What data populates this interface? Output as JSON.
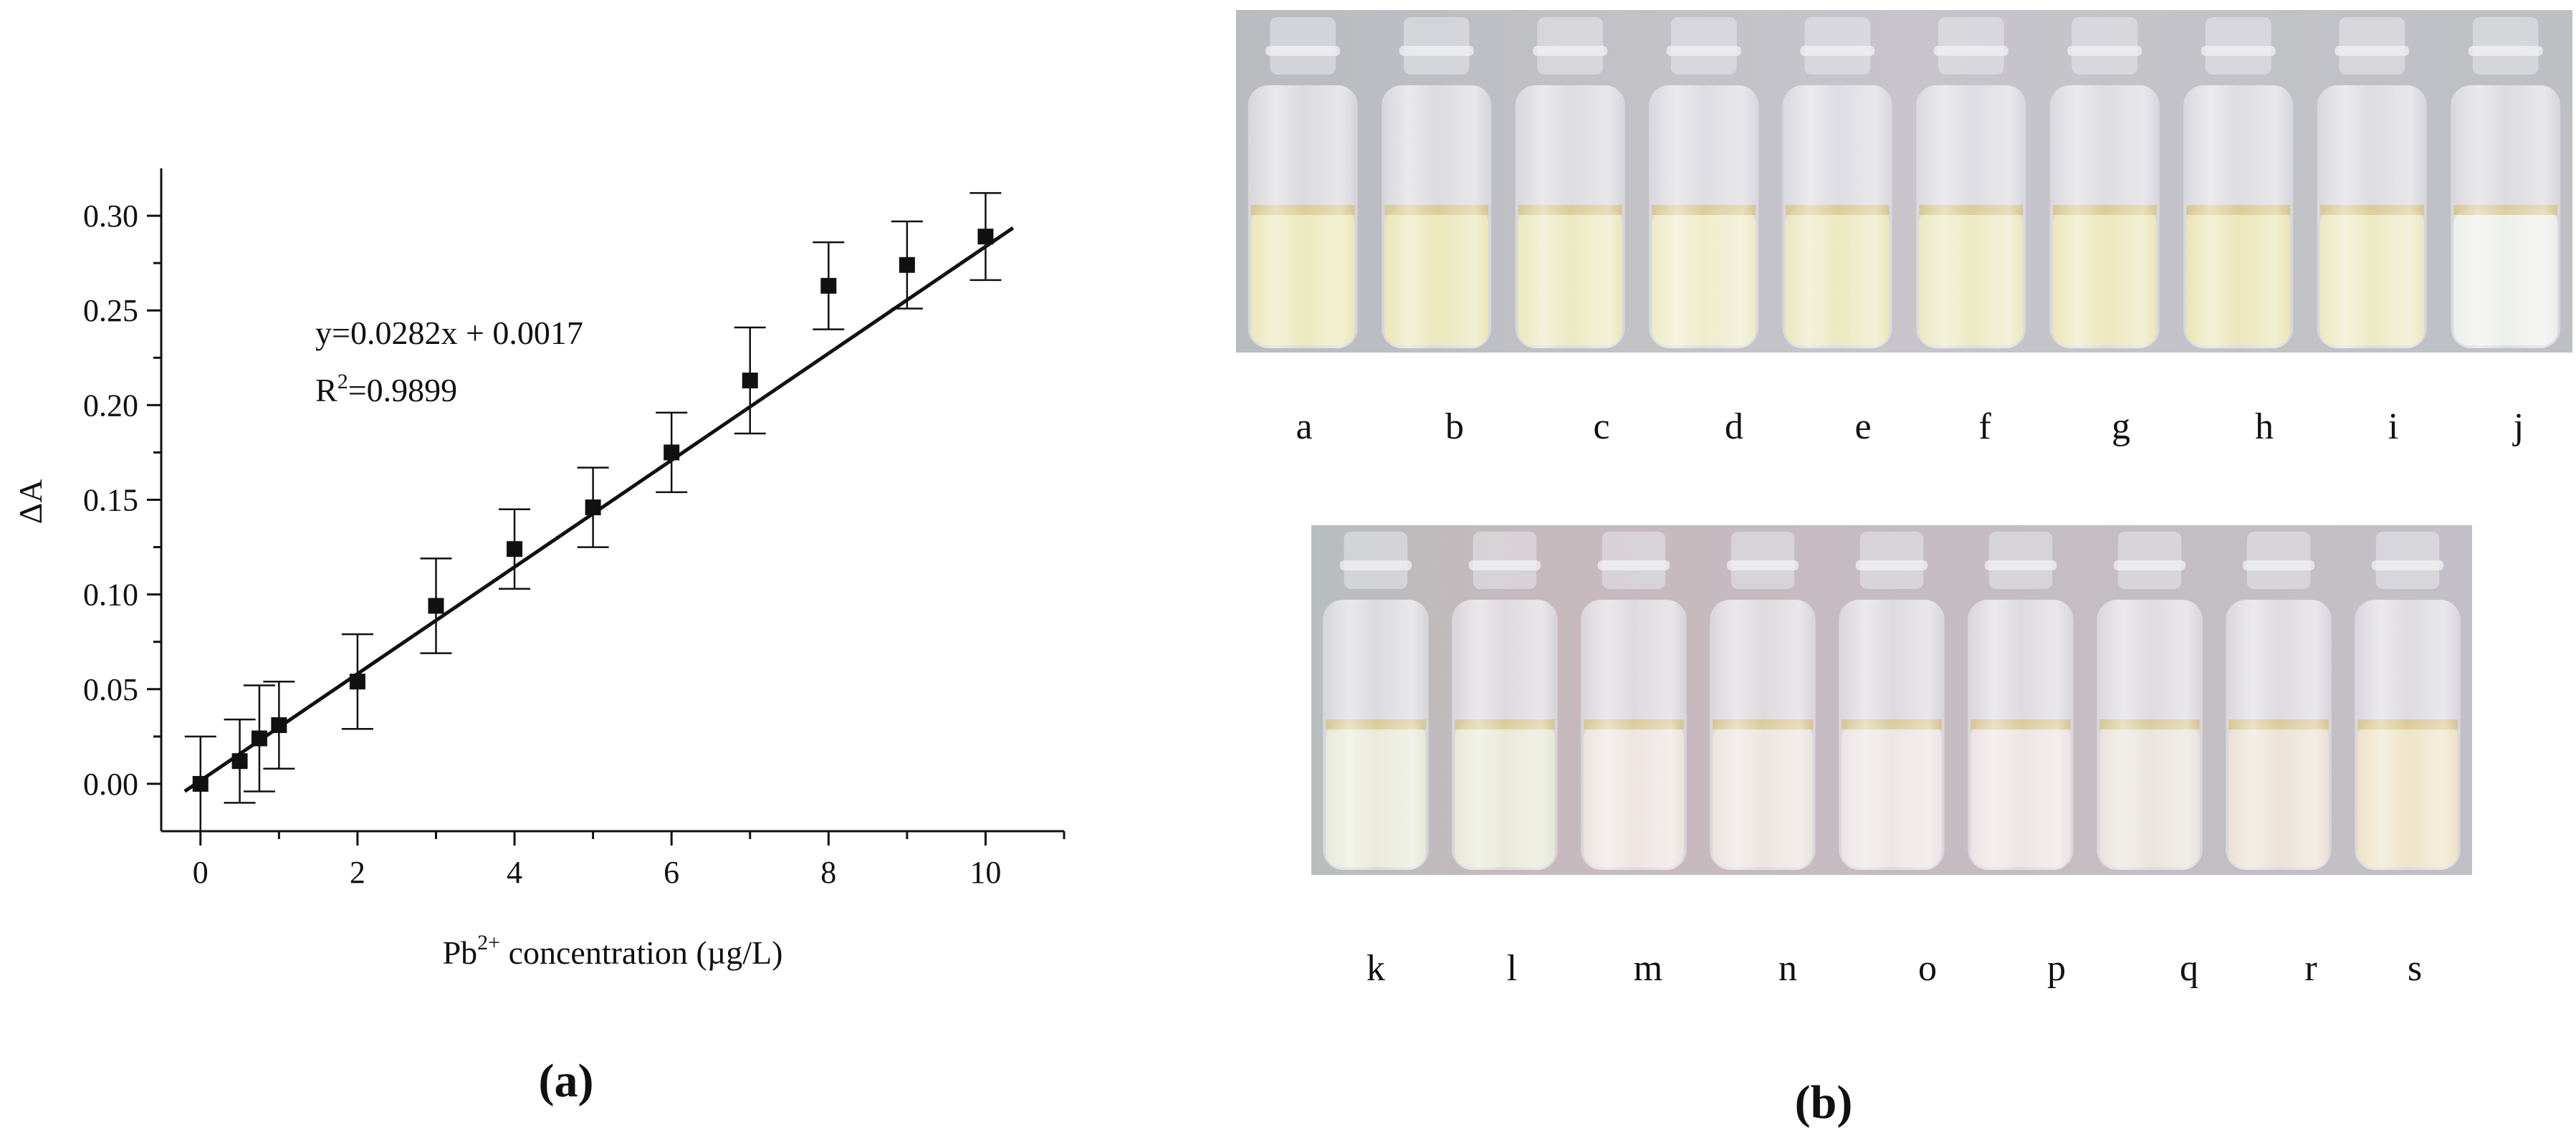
{
  "chart_data": {
    "type": "scatter",
    "xlabel": "Pb2+ concentration (µg/L)",
    "xlabel_parts": {
      "base": "Pb",
      "sup": "2+",
      "rest": " concentration (µg/L)"
    },
    "ylabel": "ΔA",
    "xlim": [
      -0.5,
      11.0
    ],
    "ylim": [
      -0.025,
      0.325
    ],
    "xticks": [
      0,
      2,
      4,
      6,
      8,
      10
    ],
    "yticks": [
      0.0,
      0.05,
      0.1,
      0.15,
      0.2,
      0.25,
      0.3
    ],
    "xtick_labels": [
      "0",
      "2",
      "4",
      "6",
      "8",
      "10"
    ],
    "ytick_labels": [
      "0.00",
      "0.05",
      "0.10",
      "0.15",
      "0.20",
      "0.25",
      "0.30"
    ],
    "grid": false,
    "points": [
      {
        "x": 0,
        "y": 0.0,
        "err": 0.025
      },
      {
        "x": 0.5,
        "y": 0.012,
        "err": 0.022
      },
      {
        "x": 0.75,
        "y": 0.024,
        "err": 0.028
      },
      {
        "x": 1,
        "y": 0.031,
        "err": 0.023
      },
      {
        "x": 2,
        "y": 0.054,
        "err": 0.025
      },
      {
        "x": 3,
        "y": 0.094,
        "err": 0.025
      },
      {
        "x": 4,
        "y": 0.124,
        "err": 0.021
      },
      {
        "x": 5,
        "y": 0.146,
        "err": 0.021
      },
      {
        "x": 6,
        "y": 0.175,
        "err": 0.021
      },
      {
        "x": 7,
        "y": 0.213,
        "err": 0.028
      },
      {
        "x": 8,
        "y": 0.263,
        "err": 0.023
      },
      {
        "x": 9,
        "y": 0.274,
        "err": 0.023
      },
      {
        "x": 10,
        "y": 0.289,
        "err": 0.023
      }
    ],
    "fit": {
      "slope": 0.0282,
      "intercept": 0.0017,
      "x_range": [
        -0.2,
        10.35
      ]
    },
    "annotation": {
      "equation": "y=0.0282x + 0.0017",
      "r2_base": "R",
      "r2_sup": "2",
      "r2_value": "=0.9899"
    }
  },
  "panels": {
    "a_label": "(a)",
    "b_label": "(b)"
  },
  "vials": {
    "top_row": [
      "a",
      "b",
      "c",
      "d",
      "e",
      "f",
      "g",
      "h",
      "i",
      "j"
    ],
    "bottom_row": [
      "k",
      "l",
      "m",
      "n",
      "o",
      "p",
      "q",
      "r",
      "s"
    ],
    "top_colors": [
      "#e6e2a9",
      "#e4e0a6",
      "#e6e3ae",
      "#e8e6b9",
      "#e5e2ad",
      "#e6e3b0",
      "#e6e0a8",
      "#e4dfa5",
      "#e7e4b2",
      "#e9ebe6"
    ],
    "bottom_colors": [
      "#e2e4cf",
      "#e1e3cc",
      "#e9dcd9",
      "#e6dcd8",
      "#e7dede",
      "#e8dcdc",
      "#e3dcd3",
      "#e6dacb",
      "#e9dcb8"
    ]
  }
}
